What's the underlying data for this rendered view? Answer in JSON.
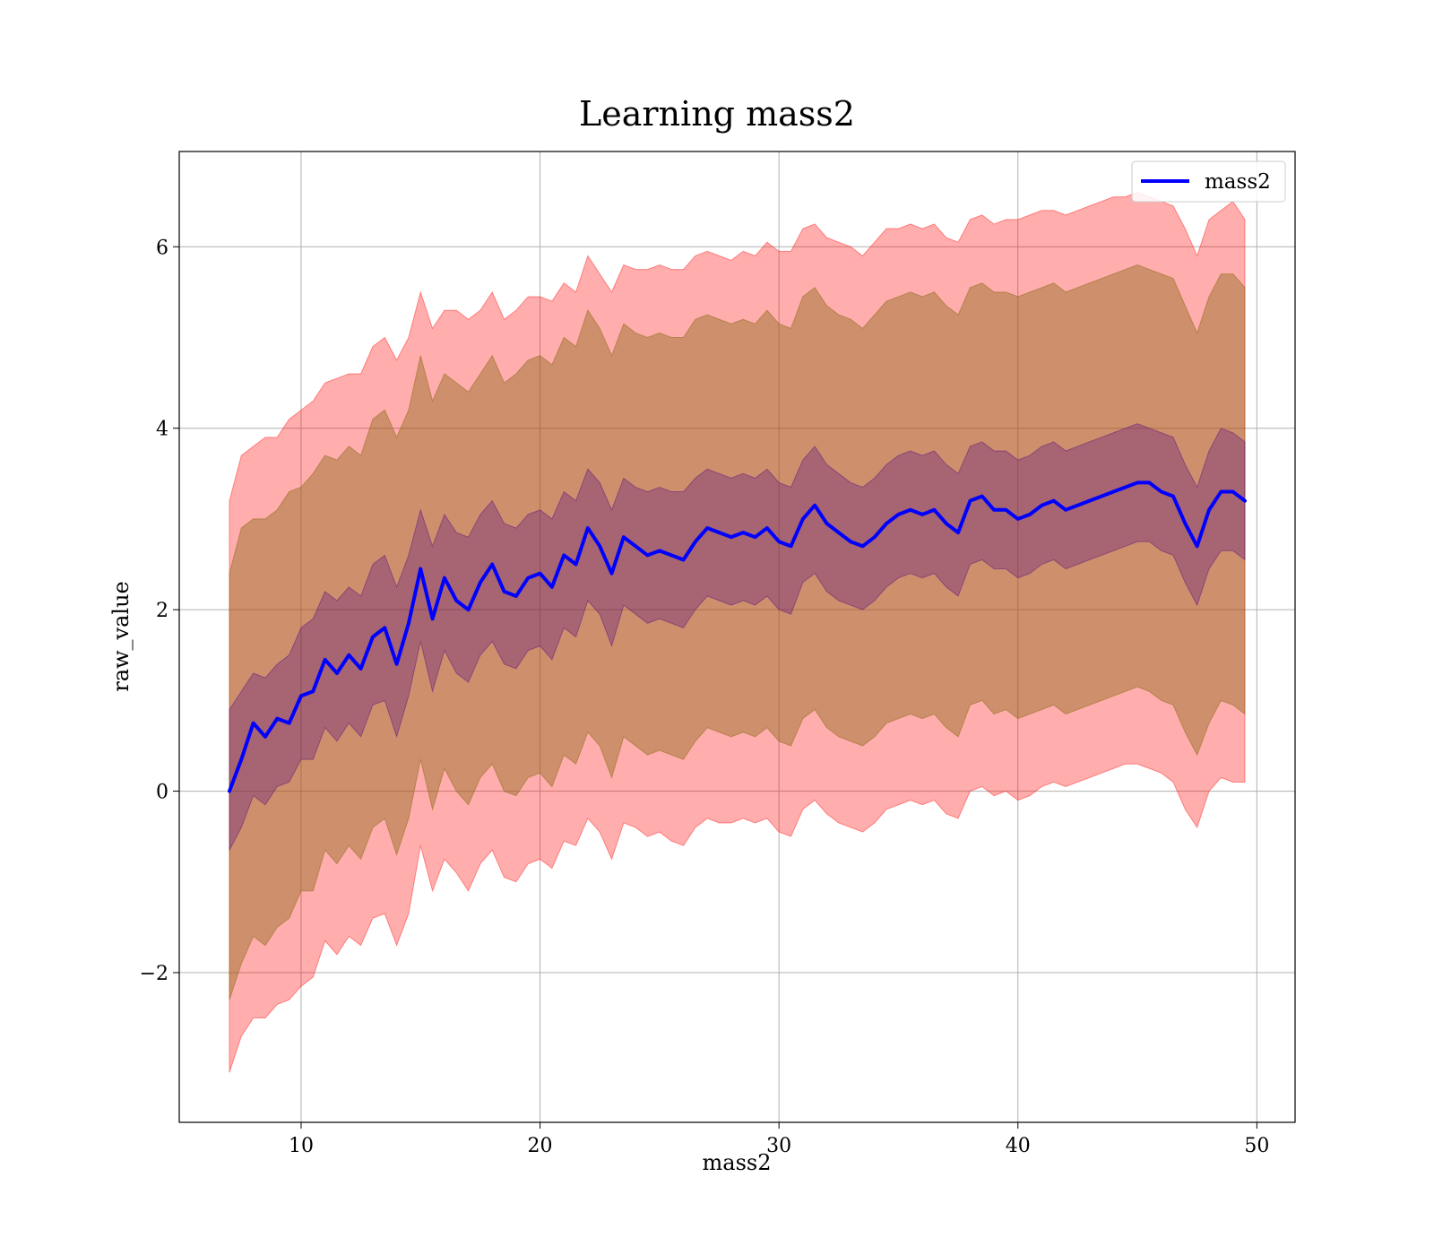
{
  "chart_data": {
    "type": "line",
    "title": "Learning mass2",
    "xlabel": "mass2",
    "ylabel": "raw_value",
    "xlim": [
      4.9,
      51.6
    ],
    "ylim": [
      -3.65,
      7.05
    ],
    "xticks": [
      10,
      20,
      30,
      40,
      50
    ],
    "yticks": [
      -2,
      0,
      2,
      4,
      6
    ],
    "ytick_labels": [
      "−2",
      "0",
      "2",
      "4",
      "6"
    ],
    "grid": true,
    "legend": {
      "position": "top-right",
      "entries": [
        "mass2"
      ]
    },
    "colors": {
      "mean_line": "#0000ff",
      "band_outer": "#ff0000",
      "band_middle": "#8b6914",
      "band_inner": "#4b0082"
    },
    "x": [
      7.0,
      7.5,
      8.0,
      8.5,
      9.0,
      9.5,
      10.0,
      10.5,
      11.0,
      11.5,
      12.0,
      12.5,
      13.0,
      13.5,
      14.0,
      14.5,
      15.0,
      15.5,
      16.0,
      16.5,
      17.0,
      17.5,
      18.0,
      18.5,
      19.0,
      19.5,
      20.0,
      20.5,
      21.0,
      21.5,
      22.0,
      22.5,
      23.0,
      23.5,
      24.0,
      24.5,
      25.0,
      25.5,
      26.0,
      26.5,
      27.0,
      27.5,
      28.0,
      28.5,
      29.0,
      29.5,
      30.0,
      30.5,
      31.0,
      31.5,
      32.0,
      32.5,
      33.0,
      33.5,
      34.0,
      34.5,
      35.0,
      35.5,
      36.0,
      36.5,
      37.0,
      37.5,
      38.0,
      38.5,
      39.0,
      39.5,
      40.0,
      40.5,
      41.0,
      41.5,
      42.0,
      42.5,
      43.0,
      43.5,
      44.0,
      44.5,
      45.0,
      45.5,
      46.0,
      46.5,
      47.0,
      47.5,
      48.0,
      48.5,
      49.0,
      49.5
    ],
    "mean": [
      0.0,
      0.35,
      0.75,
      0.6,
      0.8,
      0.75,
      1.05,
      1.1,
      1.45,
      1.3,
      1.5,
      1.35,
      1.7,
      1.8,
      1.4,
      1.85,
      2.45,
      1.9,
      2.35,
      2.1,
      2.0,
      2.3,
      2.5,
      2.2,
      2.15,
      2.35,
      2.4,
      2.25,
      2.6,
      2.5,
      2.9,
      2.7,
      2.4,
      2.8,
      2.7,
      2.6,
      2.65,
      2.6,
      2.55,
      2.75,
      2.9,
      2.85,
      2.8,
      2.85,
      2.8,
      2.9,
      2.75,
      2.7,
      3.0,
      3.15,
      2.95,
      2.85,
      2.75,
      2.7,
      2.8,
      2.95,
      3.05,
      3.1,
      3.05,
      3.1,
      2.95,
      2.85,
      3.2,
      3.25,
      3.1,
      3.1,
      3.0,
      3.05,
      3.15,
      3.2,
      3.1,
      3.15,
      3.2,
      3.25,
      3.3,
      3.35,
      3.4,
      3.4,
      3.3,
      3.25,
      2.95,
      2.7,
      3.1,
      3.3,
      3.3,
      3.2
    ],
    "band_outer_upper": [
      3.2,
      3.7,
      3.8,
      3.9,
      3.9,
      4.1,
      4.2,
      4.3,
      4.5,
      4.55,
      4.6,
      4.6,
      4.9,
      5.0,
      4.75,
      5.0,
      5.5,
      5.1,
      5.3,
      5.3,
      5.2,
      5.3,
      5.5,
      5.2,
      5.3,
      5.45,
      5.45,
      5.4,
      5.6,
      5.5,
      5.9,
      5.7,
      5.5,
      5.8,
      5.75,
      5.75,
      5.8,
      5.75,
      5.75,
      5.9,
      5.95,
      5.9,
      5.85,
      5.95,
      5.9,
      6.05,
      5.95,
      5.95,
      6.2,
      6.25,
      6.1,
      6.05,
      6.0,
      5.9,
      6.05,
      6.2,
      6.2,
      6.25,
      6.2,
      6.25,
      6.1,
      6.05,
      6.3,
      6.35,
      6.25,
      6.3,
      6.3,
      6.35,
      6.4,
      6.4,
      6.35,
      6.4,
      6.45,
      6.5,
      6.55,
      6.55,
      6.6,
      6.55,
      6.5,
      6.45,
      6.2,
      5.9,
      6.3,
      6.4,
      6.5,
      6.3
    ],
    "band_middle_upper": [
      2.4,
      2.9,
      3.0,
      3.0,
      3.1,
      3.3,
      3.35,
      3.5,
      3.7,
      3.65,
      3.8,
      3.7,
      4.1,
      4.2,
      3.9,
      4.2,
      4.8,
      4.3,
      4.6,
      4.5,
      4.4,
      4.6,
      4.8,
      4.5,
      4.6,
      4.75,
      4.8,
      4.7,
      5.0,
      4.9,
      5.3,
      5.1,
      4.8,
      5.15,
      5.05,
      5.0,
      5.05,
      5.0,
      5.0,
      5.2,
      5.25,
      5.2,
      5.15,
      5.2,
      5.15,
      5.3,
      5.15,
      5.1,
      5.45,
      5.55,
      5.35,
      5.25,
      5.2,
      5.1,
      5.25,
      5.4,
      5.45,
      5.5,
      5.45,
      5.5,
      5.35,
      5.25,
      5.55,
      5.6,
      5.5,
      5.5,
      5.45,
      5.5,
      5.55,
      5.6,
      5.5,
      5.55,
      5.6,
      5.65,
      5.7,
      5.75,
      5.8,
      5.75,
      5.7,
      5.65,
      5.35,
      5.05,
      5.45,
      5.7,
      5.7,
      5.55
    ],
    "band_inner_upper": [
      0.9,
      1.1,
      1.3,
      1.25,
      1.4,
      1.5,
      1.8,
      1.9,
      2.2,
      2.1,
      2.25,
      2.15,
      2.5,
      2.6,
      2.25,
      2.6,
      3.1,
      2.7,
      3.05,
      2.85,
      2.8,
      3.05,
      3.2,
      2.95,
      2.9,
      3.05,
      3.1,
      3.0,
      3.3,
      3.2,
      3.55,
      3.4,
      3.1,
      3.45,
      3.35,
      3.3,
      3.35,
      3.3,
      3.3,
      3.45,
      3.55,
      3.5,
      3.45,
      3.5,
      3.45,
      3.55,
      3.4,
      3.35,
      3.65,
      3.8,
      3.6,
      3.5,
      3.4,
      3.35,
      3.45,
      3.6,
      3.7,
      3.75,
      3.7,
      3.75,
      3.6,
      3.5,
      3.8,
      3.85,
      3.75,
      3.75,
      3.65,
      3.7,
      3.8,
      3.85,
      3.75,
      3.8,
      3.85,
      3.9,
      3.95,
      4.0,
      4.05,
      4.0,
      3.95,
      3.9,
      3.6,
      3.35,
      3.75,
      4.0,
      3.95,
      3.85
    ],
    "band_inner_lower": [
      -0.65,
      -0.4,
      -0.05,
      -0.15,
      0.05,
      0.1,
      0.35,
      0.35,
      0.7,
      0.55,
      0.75,
      0.6,
      0.95,
      1.0,
      0.6,
      1.05,
      1.65,
      1.1,
      1.55,
      1.3,
      1.2,
      1.5,
      1.65,
      1.4,
      1.35,
      1.55,
      1.6,
      1.45,
      1.8,
      1.7,
      2.1,
      1.95,
      1.6,
      2.05,
      1.95,
      1.85,
      1.9,
      1.85,
      1.8,
      2.0,
      2.15,
      2.1,
      2.05,
      2.1,
      2.05,
      2.15,
      2.0,
      1.95,
      2.3,
      2.4,
      2.2,
      2.1,
      2.05,
      2.0,
      2.1,
      2.25,
      2.35,
      2.4,
      2.35,
      2.4,
      2.25,
      2.15,
      2.5,
      2.55,
      2.45,
      2.45,
      2.35,
      2.4,
      2.5,
      2.55,
      2.45,
      2.5,
      2.55,
      2.6,
      2.65,
      2.7,
      2.75,
      2.75,
      2.65,
      2.6,
      2.3,
      2.05,
      2.45,
      2.65,
      2.65,
      2.55
    ],
    "band_middle_lower": [
      -2.3,
      -1.9,
      -1.6,
      -1.7,
      -1.5,
      -1.4,
      -1.1,
      -1.1,
      -0.65,
      -0.8,
      -0.6,
      -0.75,
      -0.4,
      -0.3,
      -0.7,
      -0.3,
      0.35,
      -0.2,
      0.25,
      0.0,
      -0.15,
      0.15,
      0.3,
      0.0,
      -0.05,
      0.15,
      0.2,
      0.05,
      0.4,
      0.3,
      0.65,
      0.5,
      0.15,
      0.6,
      0.5,
      0.4,
      0.45,
      0.4,
      0.35,
      0.55,
      0.7,
      0.65,
      0.6,
      0.65,
      0.6,
      0.7,
      0.55,
      0.5,
      0.8,
      0.9,
      0.7,
      0.6,
      0.55,
      0.5,
      0.6,
      0.75,
      0.8,
      0.85,
      0.8,
      0.85,
      0.7,
      0.6,
      0.95,
      1.0,
      0.85,
      0.9,
      0.8,
      0.85,
      0.9,
      0.95,
      0.85,
      0.9,
      0.95,
      1.0,
      1.05,
      1.1,
      1.15,
      1.1,
      1.0,
      0.95,
      0.65,
      0.4,
      0.75,
      1.0,
      0.95,
      0.85
    ],
    "band_outer_lower": [
      -3.1,
      -2.7,
      -2.5,
      -2.5,
      -2.35,
      -2.3,
      -2.15,
      -2.05,
      -1.65,
      -1.8,
      -1.6,
      -1.7,
      -1.4,
      -1.35,
      -1.7,
      -1.35,
      -0.6,
      -1.1,
      -0.75,
      -0.9,
      -1.1,
      -0.8,
      -0.65,
      -0.95,
      -1.0,
      -0.8,
      -0.75,
      -0.85,
      -0.55,
      -0.6,
      -0.3,
      -0.45,
      -0.75,
      -0.35,
      -0.4,
      -0.5,
      -0.45,
      -0.55,
      -0.6,
      -0.4,
      -0.3,
      -0.35,
      -0.35,
      -0.3,
      -0.35,
      -0.3,
      -0.45,
      -0.5,
      -0.2,
      -0.1,
      -0.25,
      -0.35,
      -0.4,
      -0.45,
      -0.35,
      -0.2,
      -0.15,
      -0.1,
      -0.15,
      -0.1,
      -0.25,
      -0.3,
      0.0,
      0.05,
      -0.05,
      0.0,
      -0.1,
      -0.05,
      0.05,
      0.1,
      0.05,
      0.1,
      0.15,
      0.2,
      0.25,
      0.3,
      0.3,
      0.25,
      0.2,
      0.1,
      -0.2,
      -0.4,
      0.0,
      0.15,
      0.1,
      0.1
    ]
  }
}
